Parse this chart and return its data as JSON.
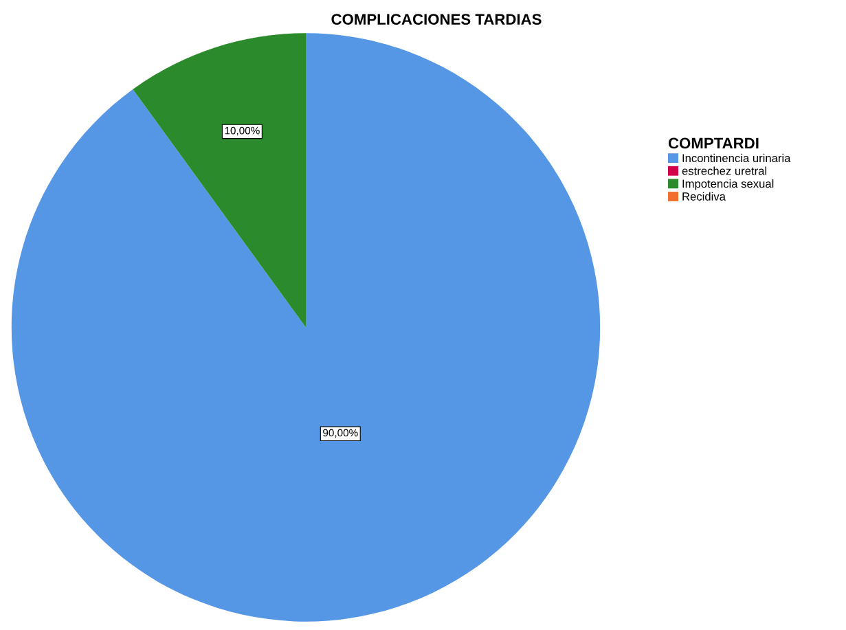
{
  "chart_data": {
    "type": "pie",
    "title": "COMPLICACIONES TARDIAS",
    "legend_title": "COMPTARDI",
    "categories": [
      "Incontinencia urinaria",
      "estrechez uretral",
      "Impotencia sexual",
      "Recidiva"
    ],
    "values": [
      90,
      0,
      10,
      0
    ],
    "colors": [
      "#5596e5",
      "#d2004b",
      "#2b8a2b",
      "#f06e2e"
    ],
    "value_labels": [
      "90,00%",
      null,
      "10,00%",
      null
    ],
    "legend": "right"
  }
}
